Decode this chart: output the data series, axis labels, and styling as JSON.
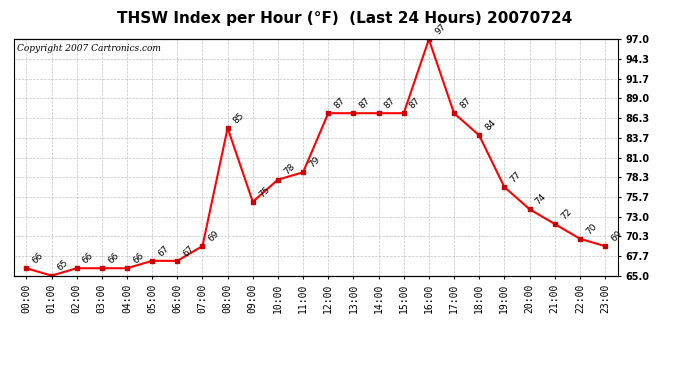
{
  "title": "THSW Index per Hour (°F)  (Last 24 Hours) 20070724",
  "copyright": "Copyright 2007 Cartronics.com",
  "hours": [
    "00:00",
    "01:00",
    "02:00",
    "03:00",
    "04:00",
    "05:00",
    "06:00",
    "07:00",
    "08:00",
    "09:00",
    "10:00",
    "11:00",
    "12:00",
    "13:00",
    "14:00",
    "15:00",
    "16:00",
    "17:00",
    "18:00",
    "19:00",
    "20:00",
    "21:00",
    "22:00",
    "23:00"
  ],
  "values": [
    66,
    65,
    66,
    66,
    66,
    67,
    67,
    69,
    85,
    75,
    78,
    79,
    87,
    87,
    87,
    87,
    97,
    87,
    84,
    77,
    74,
    72,
    70,
    69
  ],
  "line_color": "#ff0000",
  "marker_color": "#cc0000",
  "bg_color": "#ffffff",
  "plot_bg_color": "#ffffff",
  "grid_color": "#aaaaaa",
  "title_fontsize": 11,
  "label_fontsize": 6.5,
  "tick_fontsize": 7,
  "copyright_fontsize": 6.5,
  "ylim": [
    65.0,
    97.0
  ],
  "yticks": [
    65.0,
    67.7,
    70.3,
    73.0,
    75.7,
    78.3,
    81.0,
    83.7,
    86.3,
    89.0,
    91.7,
    94.3,
    97.0
  ]
}
